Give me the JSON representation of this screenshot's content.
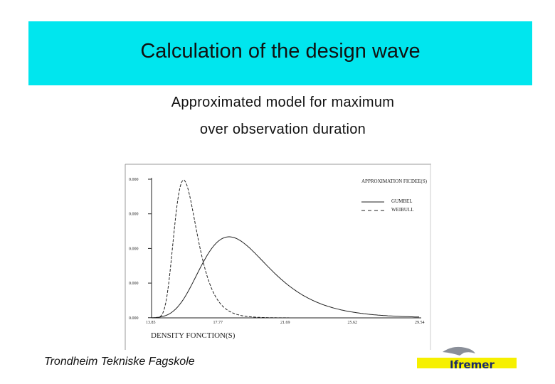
{
  "header": {
    "title": "Calculation of the design wave"
  },
  "subtitle": [
    "Approximated model for maximum",
    "over observation duration"
  ],
  "figure": {
    "y_tick_labels": [
      "0.000",
      "0.000",
      "0.000",
      "0.000",
      "0.000"
    ],
    "x_tick_labels": [
      "13.85",
      "17.77",
      "21.69",
      "25.62",
      "29.54"
    ],
    "x_label": "DENSITY FONCTION(S)",
    "legend_title": "APPROXIMATION FICDEE(S)",
    "legend": [
      "GUMBEL",
      "WEIBULL"
    ]
  },
  "footer": {
    "text": "Trondheim Tekniske Fagskole"
  },
  "logo": {
    "text": "Ifremer"
  }
}
